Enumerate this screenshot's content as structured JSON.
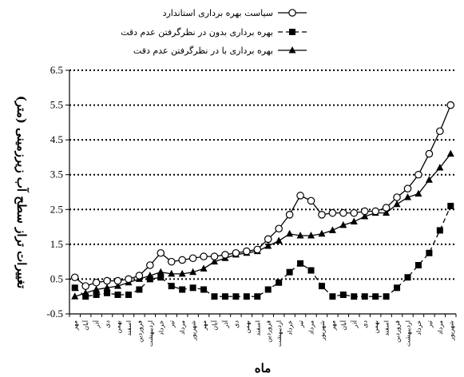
{
  "chart_data": {
    "type": "line",
    "title": "",
    "xlabel": "ماه",
    "ylabel": "تغییرات تراز سطح آب زیرزمینی (متر)",
    "ylim": [
      -0.5,
      6.5
    ],
    "yticks": [
      "6.5",
      "5.5",
      "4.5",
      "3.5",
      "2.5",
      "1.5",
      "0.5",
      "-0.5"
    ],
    "grid": "dotted horizontal",
    "legend_position": "top",
    "categories": [
      "مهر",
      "آبان",
      "آذر",
      "دی",
      "بهمن",
      "اسفند",
      "فروردین",
      "اردیبهشت",
      "خرداد",
      "تیر",
      "مرداد",
      "شهریور",
      "مهر",
      "آبان",
      "آذر",
      "دی",
      "بهمن",
      "اسفند",
      "فروردین",
      "اردیبهشت",
      "خرداد",
      "تیر",
      "مرداد",
      "شهریور",
      "مهر",
      "آبان",
      "آذر",
      "دی",
      "بهمن",
      "اسفند",
      "فروردین",
      "اردیبهشت",
      "خرداد",
      "تیر",
      "مرداد",
      "شهریور"
    ],
    "series": [
      {
        "name": "سیاست بهره برداری استاندارد",
        "marker": "circle-open",
        "line": "solid",
        "values": [
          0.55,
          0.3,
          0.4,
          0.45,
          0.45,
          0.5,
          0.6,
          0.9,
          1.25,
          1.0,
          1.05,
          1.1,
          1.15,
          1.15,
          1.2,
          1.25,
          1.3,
          1.35,
          1.65,
          1.95,
          2.35,
          2.9,
          2.75,
          2.35,
          2.4,
          2.4,
          2.4,
          2.45,
          2.45,
          2.55,
          2.85,
          3.1,
          3.5,
          4.1,
          4.75,
          5.5
        ]
      },
      {
        "name": "بهره برداری بدون در نظرگرفتن عدم دقت",
        "marker": "square-filled",
        "line": "dashed",
        "values": [
          0.25,
          0.0,
          0.05,
          0.1,
          0.05,
          0.05,
          0.2,
          0.5,
          0.55,
          0.3,
          0.2,
          0.25,
          0.2,
          0.0,
          0.0,
          0.0,
          0.0,
          0.0,
          0.2,
          0.4,
          0.7,
          0.95,
          0.75,
          0.3,
          0.0,
          0.05,
          0.0,
          0.0,
          0.0,
          0.0,
          0.25,
          0.55,
          0.9,
          1.25,
          1.9,
          2.6
        ]
      },
      {
        "name": "بهره برداری با در نظرگرفتن عدم دقت",
        "marker": "triangle-filled",
        "line": "solid",
        "values": [
          0.0,
          0.1,
          0.2,
          0.25,
          0.3,
          0.4,
          0.5,
          0.6,
          0.7,
          0.65,
          0.65,
          0.7,
          0.8,
          1.0,
          1.1,
          1.2,
          1.25,
          1.3,
          1.45,
          1.6,
          1.8,
          1.75,
          1.75,
          1.8,
          1.9,
          2.05,
          2.15,
          2.3,
          2.4,
          2.4,
          2.65,
          2.85,
          2.95,
          3.35,
          3.7,
          4.1
        ]
      }
    ]
  }
}
